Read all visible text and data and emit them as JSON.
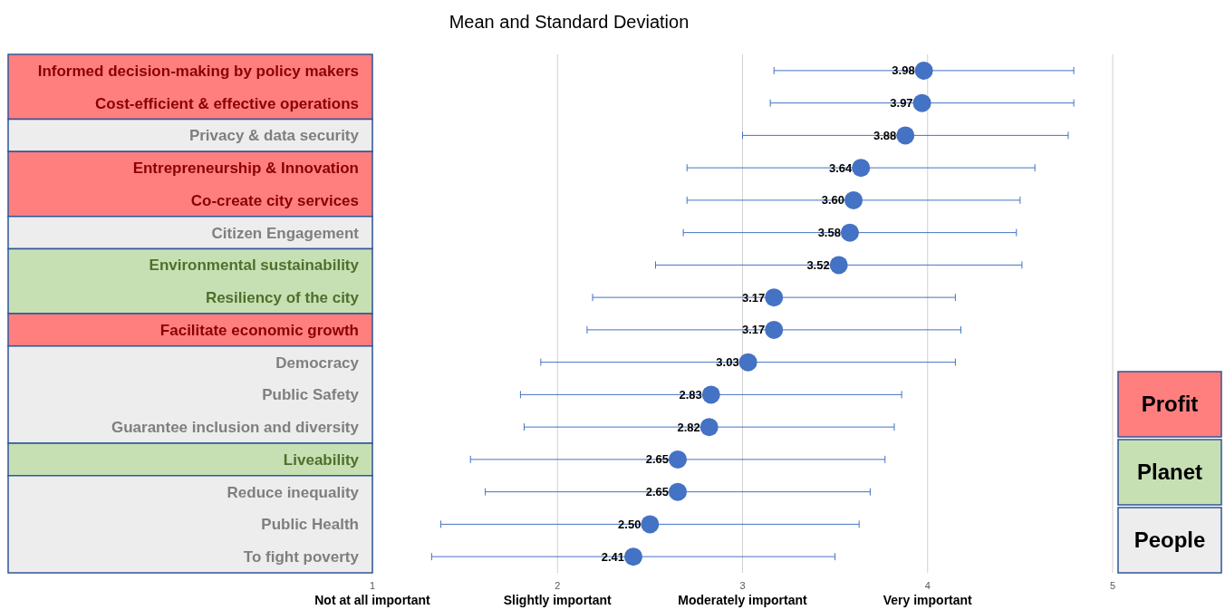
{
  "chart_data": {
    "type": "scatter",
    "title": "Mean and Standard Deviation",
    "orientation": "horizontal",
    "categories": [
      "Informed decision-making by policy makers",
      "Cost-efficient & effective  operations",
      "Privacy & data security",
      "Entrepreneurship & Innovation",
      "Co-create city services",
      "Citizen Engagement",
      "Environmental sustainability",
      "Resiliency of the city",
      "Facilitate economic growth",
      "Democracy",
      "Public Safety",
      "Guarantee inclusion and diversity",
      "Liveability",
      "Reduce inequality",
      "Public Health",
      "To fight poverty"
    ],
    "values": [
      3.98,
      3.97,
      3.88,
      3.64,
      3.6,
      3.58,
      3.52,
      3.17,
      3.17,
      3.03,
      2.83,
      2.82,
      2.65,
      2.65,
      2.5,
      2.41
    ],
    "errors": [
      0.81,
      0.82,
      0.88,
      0.94,
      0.9,
      0.9,
      0.99,
      0.98,
      1.01,
      1.12,
      1.03,
      1.0,
      1.12,
      1.04,
      1.13,
      1.09
    ],
    "value_labels": [
      "3.98",
      "3.97",
      "3.88",
      "3.64",
      "3.60",
      "3.58",
      "3.52",
      "3.17",
      "3.17",
      "3.03",
      "2.83",
      "2.82",
      "2.65",
      "2.65",
      "2.50",
      "2.41"
    ],
    "color": "#4472c4",
    "marker": "circle",
    "xlim": [
      1,
      5
    ],
    "xticks": [
      {
        "value": 1,
        "label": "1\nNot at all important"
      },
      {
        "value": 2,
        "label": "2\nSlightly important"
      },
      {
        "value": 3,
        "label": "3\nModerately important"
      },
      {
        "value": 4,
        "label": "4\nVery important"
      },
      5
    ],
    "grid": "x",
    "annotations": [
      "Profit",
      "Planet",
      "People"
    ]
  }
}
